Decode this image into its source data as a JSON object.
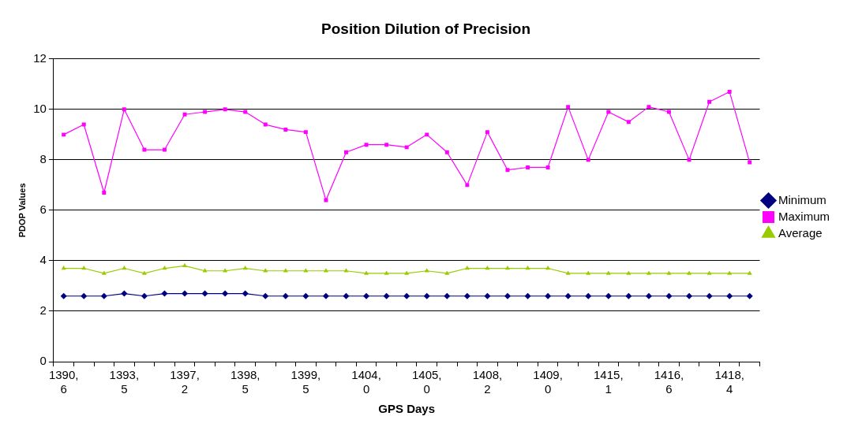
{
  "chart_data": {
    "type": "line",
    "title": "Position Dilution of Precision",
    "xlabel": "GPS Days",
    "ylabel": "PDOP Values",
    "categories": [
      "1390, 6",
      null,
      null,
      "1393, 5",
      null,
      null,
      "1397, 2",
      null,
      null,
      "1398, 5",
      null,
      null,
      "1399, 5",
      null,
      null,
      "1404, 0",
      null,
      null,
      "1405, 0",
      null,
      null,
      "1408, 2",
      null,
      null,
      "1409, 0",
      null,
      null,
      "1415, 1",
      null,
      null,
      "1416, 6",
      null,
      null,
      "1418, 4",
      null
    ],
    "series": [
      {
        "name": "Minimum",
        "color": "#000080",
        "marker": "diamond",
        "values": [
          2.6,
          2.6,
          2.6,
          2.7,
          2.6,
          2.7,
          2.7,
          2.7,
          2.7,
          2.7,
          2.6,
          2.6,
          2.6,
          2.6,
          2.6,
          2.6,
          2.6,
          2.6,
          2.6,
          2.6,
          2.6,
          2.6,
          2.6,
          2.6,
          2.6,
          2.6,
          2.6,
          2.6,
          2.6,
          2.6,
          2.6,
          2.6,
          2.6,
          2.6,
          2.6
        ]
      },
      {
        "name": "Maximum",
        "color": "#ff00ff",
        "marker": "square",
        "values": [
          9.0,
          9.4,
          6.7,
          10.0,
          8.4,
          8.4,
          9.8,
          9.9,
          10.0,
          9.9,
          9.4,
          9.2,
          9.1,
          6.4,
          8.3,
          8.6,
          8.6,
          8.5,
          9.0,
          8.3,
          7.0,
          9.1,
          7.6,
          7.7,
          7.7,
          10.1,
          8.0,
          9.9,
          9.5,
          10.1,
          9.9,
          8.0,
          10.3,
          10.7,
          7.9
        ]
      },
      {
        "name": "Average",
        "color": "#99cc00",
        "marker": "triangle",
        "values": [
          3.7,
          3.7,
          3.5,
          3.7,
          3.5,
          3.7,
          3.8,
          3.6,
          3.6,
          3.7,
          3.6,
          3.6,
          3.6,
          3.6,
          3.6,
          3.5,
          3.5,
          3.5,
          3.6,
          3.5,
          3.7,
          3.7,
          3.7,
          3.7,
          3.7,
          3.5,
          3.5,
          3.5,
          3.5,
          3.5,
          3.5,
          3.5,
          3.5,
          3.5,
          3.5
        ]
      }
    ],
    "ylim": [
      0,
      12
    ],
    "yticks": [
      0,
      2,
      4,
      6,
      8,
      10,
      12
    ],
    "grid": "y",
    "legend": "right"
  }
}
